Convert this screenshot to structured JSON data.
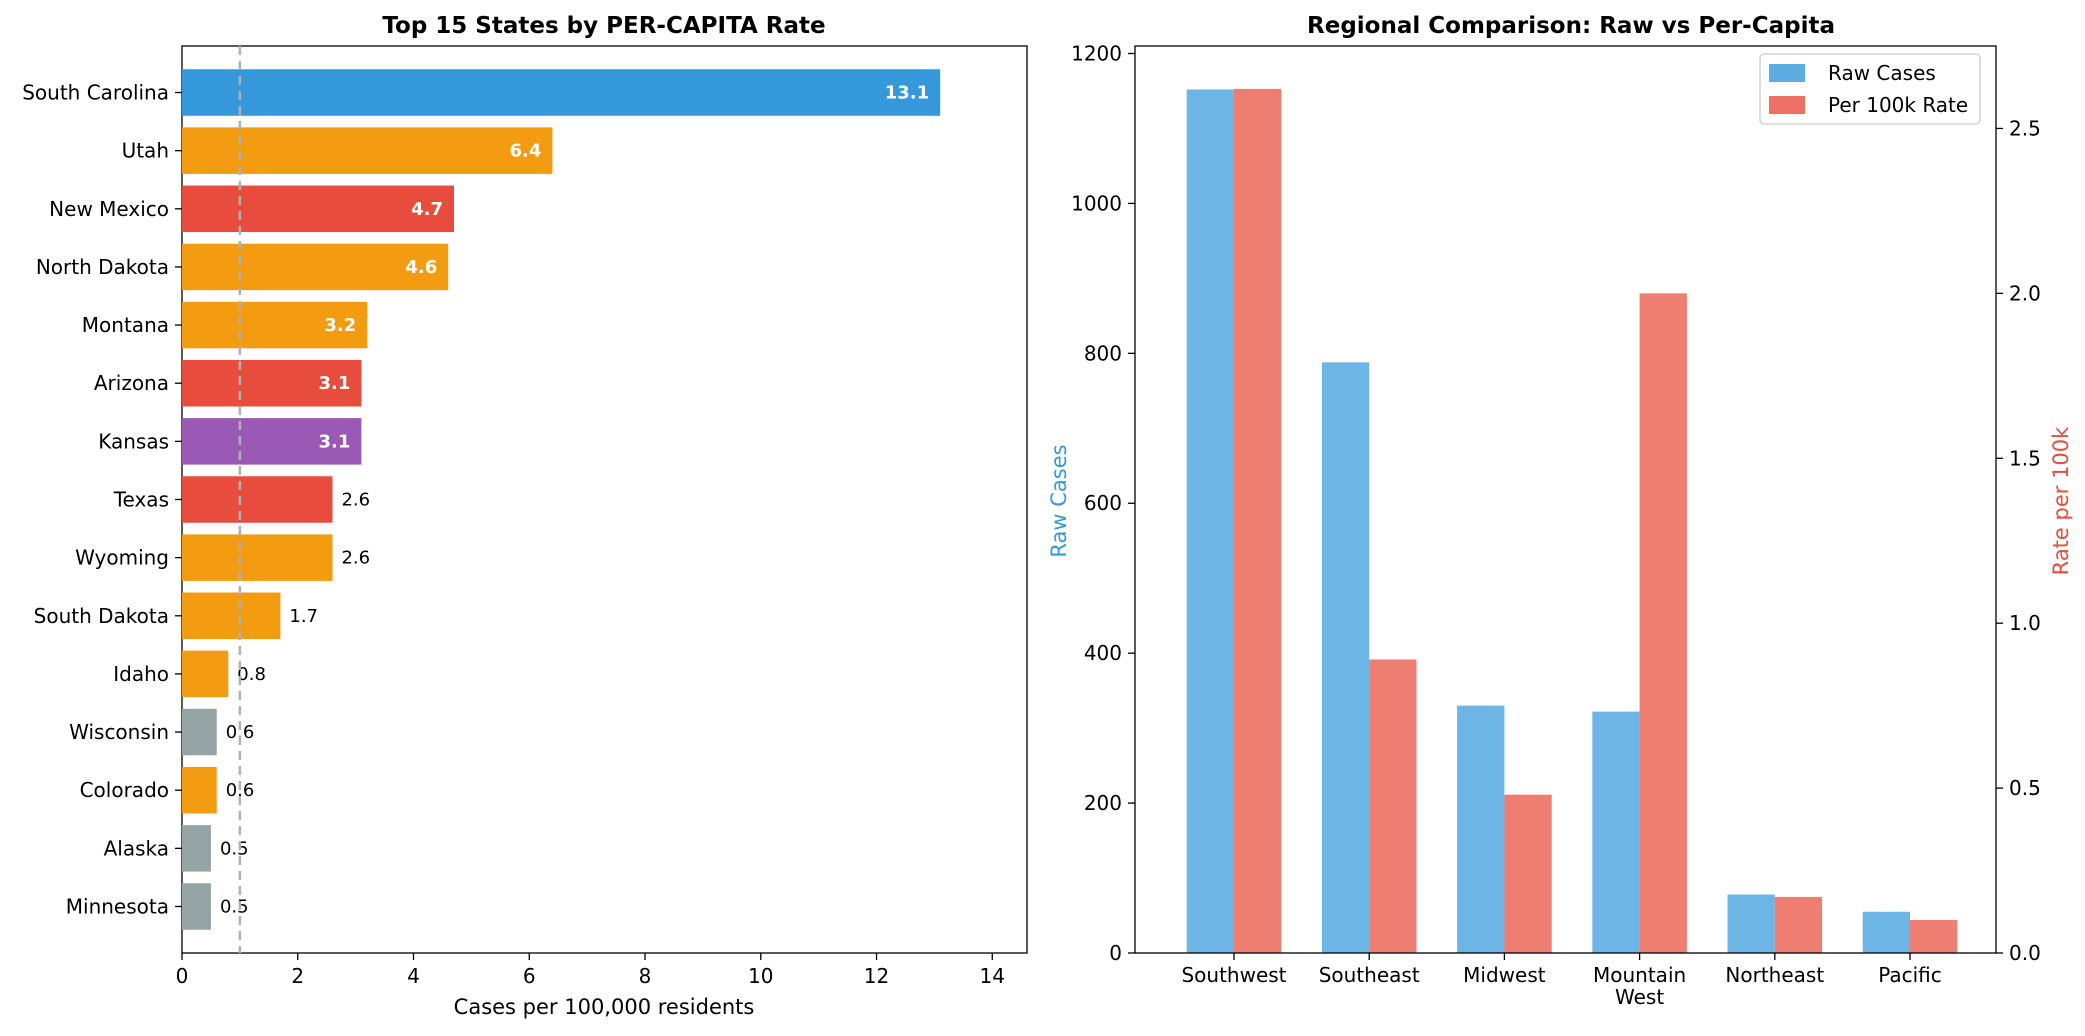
{
  "chart_data": [
    {
      "type": "bar",
      "orientation": "horizontal",
      "title": "Top 15 States by PER-CAPITA Rate",
      "xlabel": "Cases per 100,000 residents",
      "ylabel": "",
      "xlim": [
        0,
        14.6
      ],
      "xticks": [
        0,
        2,
        4,
        6,
        8,
        10,
        12,
        14
      ],
      "reference_line": 1,
      "categories": [
        "South Carolina",
        "Utah",
        "New Mexico",
        "North Dakota",
        "Montana",
        "Arizona",
        "Kansas",
        "Texas",
        "Wyoming",
        "South Dakota",
        "Idaho",
        "Wisconsin",
        "Colorado",
        "Alaska",
        "Minnesota"
      ],
      "values": [
        13.1,
        6.4,
        4.7,
        4.6,
        3.2,
        3.1,
        3.1,
        2.6,
        2.6,
        1.7,
        0.8,
        0.6,
        0.6,
        0.5,
        0.5
      ],
      "labels": [
        "13.1",
        "6.4",
        "4.7",
        "4.6",
        "3.2",
        "3.1",
        "3.1",
        "2.6",
        "2.6",
        "1.7",
        "0.8",
        "0.6",
        "0.6",
        "0.5",
        "0.5"
      ],
      "colors": [
        "#3498db",
        "#f39c12",
        "#e74c3c",
        "#f39c12",
        "#f39c12",
        "#e74c3c",
        "#9b59b6",
        "#e74c3c",
        "#f39c12",
        "#f39c12",
        "#f39c12",
        "#95a5a6",
        "#f39c12",
        "#95a5a6",
        "#95a5a6"
      ]
    },
    {
      "type": "bar",
      "orientation": "vertical",
      "title": "Regional Comparison: Raw vs Per-Capita",
      "categories": [
        "Southwest",
        "Southeast",
        "Midwest",
        "Mountain West",
        "Northeast",
        "Pacific"
      ],
      "category_lines": [
        [
          "Southwest"
        ],
        [
          "Southeast"
        ],
        [
          "Midwest"
        ],
        [
          "Mountain",
          "West"
        ],
        [
          "Northeast"
        ],
        [
          "Pacific"
        ]
      ],
      "ylabel": "Raw Cases",
      "y2label": "Rate per 100k",
      "ylim": [
        0,
        1210
      ],
      "yticks": [
        0,
        200,
        400,
        600,
        800,
        1000,
        1200
      ],
      "y2lim": [
        0,
        2.75
      ],
      "y2ticks": [
        "0.0",
        "0.5",
        "1.0",
        "1.5",
        "2.0",
        "2.5"
      ],
      "series": [
        {
          "name": "Raw Cases",
          "axis": "left",
          "color": "#5dade2",
          "values": [
            1152,
            788,
            330,
            322,
            78,
            55
          ]
        },
        {
          "name": "Per 100k Rate",
          "axis": "right",
          "color": "#ec7063",
          "values": [
            2.62,
            0.89,
            0.48,
            2.0,
            0.17,
            0.1
          ]
        }
      ],
      "legend_position": "top-right",
      "ylabel_color": "#3498db",
      "y2label_color": "#e74c3c"
    }
  ]
}
